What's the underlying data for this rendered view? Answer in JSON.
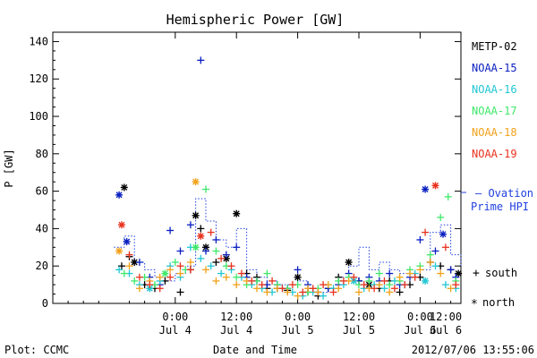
{
  "chart_data": {
    "type": "scatter",
    "title": "Hemispheric Power [GW]",
    "ylabel": "P [GW]",
    "xlabel": "Date and Time",
    "ylim": [
      0,
      145
    ],
    "xlim": [
      -24,
      56
    ],
    "x_units": "hours since 2012/07/04 00:00 UT",
    "yticks": [
      0,
      20,
      40,
      60,
      80,
      100,
      120,
      140
    ],
    "xticks": [
      {
        "x": 0,
        "time": "0:00",
        "date": "Jul 4"
      },
      {
        "x": 12,
        "time": "12:00",
        "date": "Jul 4"
      },
      {
        "x": 24,
        "time": "0:00",
        "date": "Jul 5"
      },
      {
        "x": 36,
        "time": "12:00",
        "date": "Jul 5"
      },
      {
        "x": 48,
        "time": "0:00",
        "date": "Jul 6"
      },
      {
        "x": 60,
        "time": "12:00",
        "date": "Jul 6"
      }
    ],
    "series": [
      {
        "name": "METP-02",
        "color": "#000000",
        "points": [
          [
            -10,
            62,
            "n"
          ],
          [
            -10.5,
            20,
            "s"
          ],
          [
            -9,
            25,
            "s"
          ],
          [
            -8,
            22,
            "n"
          ],
          [
            -6,
            10,
            "s"
          ],
          [
            -4,
            8,
            "s"
          ],
          [
            -2,
            12,
            "s"
          ],
          [
            1,
            6,
            "s"
          ],
          [
            3,
            18,
            "s"
          ],
          [
            4,
            47,
            "n"
          ],
          [
            5,
            40,
            "s"
          ],
          [
            6,
            30,
            "n"
          ],
          [
            8,
            22,
            "s"
          ],
          [
            10,
            24,
            "n"
          ],
          [
            12,
            48,
            "n"
          ],
          [
            14,
            16,
            "s"
          ],
          [
            16,
            14,
            "s"
          ],
          [
            18,
            8,
            "s"
          ],
          [
            20,
            8,
            "s"
          ],
          [
            22,
            7,
            "s"
          ],
          [
            24,
            14,
            "n"
          ],
          [
            26,
            6,
            "s"
          ],
          [
            28,
            4,
            "s"
          ],
          [
            30,
            8,
            "s"
          ],
          [
            32,
            14,
            "s"
          ],
          [
            34,
            22,
            "n"
          ],
          [
            36,
            12,
            "s"
          ],
          [
            38,
            10,
            "n"
          ],
          [
            40,
            8,
            "s"
          ],
          [
            42,
            12,
            "s"
          ],
          [
            44,
            6,
            "s"
          ],
          [
            46,
            10,
            "s"
          ],
          [
            48,
            14,
            "s"
          ],
          [
            50,
            22,
            "s"
          ],
          [
            52,
            20,
            "s"
          ],
          [
            54,
            18,
            "s"
          ],
          [
            55.5,
            16,
            "n"
          ]
        ]
      },
      {
        "name": "NOAA-15",
        "color": "#0a1fc0",
        "points": [
          [
            -11,
            58,
            "n"
          ],
          [
            -9.5,
            33,
            "n"
          ],
          [
            -7,
            22,
            "s"
          ],
          [
            -5,
            14,
            "s"
          ],
          [
            -3,
            10,
            "s"
          ],
          [
            -1,
            39,
            "s"
          ],
          [
            1,
            28,
            "s"
          ],
          [
            3,
            42,
            "s"
          ],
          [
            5,
            130,
            "s"
          ],
          [
            6,
            28,
            "s"
          ],
          [
            8,
            34,
            "s"
          ],
          [
            10,
            26,
            "s"
          ],
          [
            12,
            30,
            "s"
          ],
          [
            14,
            14,
            "s"
          ],
          [
            16,
            12,
            "s"
          ],
          [
            18,
            10,
            "s"
          ],
          [
            20,
            10,
            "s"
          ],
          [
            22,
            8,
            "s"
          ],
          [
            24,
            18,
            "s"
          ],
          [
            26,
            10,
            "s"
          ],
          [
            28,
            6,
            "s"
          ],
          [
            30,
            8,
            "s"
          ],
          [
            32,
            10,
            "s"
          ],
          [
            34,
            16,
            "s"
          ],
          [
            36,
            12,
            "s"
          ],
          [
            38,
            14,
            "s"
          ],
          [
            40,
            12,
            "s"
          ],
          [
            42,
            16,
            "s"
          ],
          [
            44,
            10,
            "s"
          ],
          [
            46,
            14,
            "s"
          ],
          [
            48,
            34,
            "s"
          ],
          [
            49,
            61,
            "n"
          ],
          [
            51,
            28,
            "s"
          ],
          [
            52.5,
            37,
            "n"
          ],
          [
            54,
            18,
            "s"
          ],
          [
            55,
            14,
            "s"
          ]
        ]
      },
      {
        "name": "NOAA-16",
        "color": "#21c7d4",
        "points": [
          [
            -11,
            18,
            "s"
          ],
          [
            -9,
            16,
            "s"
          ],
          [
            -7,
            10,
            "s"
          ],
          [
            -5,
            8,
            "n"
          ],
          [
            -3,
            12,
            "s"
          ],
          [
            -1,
            20,
            "s"
          ],
          [
            1,
            14,
            "s"
          ],
          [
            3,
            30,
            "s"
          ],
          [
            5,
            24,
            "s"
          ],
          [
            7,
            20,
            "s"
          ],
          [
            9,
            16,
            "s"
          ],
          [
            11,
            18,
            "s"
          ],
          [
            13,
            14,
            "s"
          ],
          [
            15,
            10,
            "s"
          ],
          [
            17,
            8,
            "s"
          ],
          [
            19,
            6,
            "s"
          ],
          [
            21,
            8,
            "s"
          ],
          [
            23,
            6,
            "s"
          ],
          [
            25,
            4,
            "s"
          ],
          [
            27,
            6,
            "s"
          ],
          [
            29,
            4,
            "s"
          ],
          [
            31,
            8,
            "s"
          ],
          [
            33,
            10,
            "s"
          ],
          [
            35,
            12,
            "n"
          ],
          [
            37,
            8,
            "s"
          ],
          [
            39,
            10,
            "s"
          ],
          [
            41,
            8,
            "s"
          ],
          [
            43,
            12,
            "s"
          ],
          [
            45,
            10,
            "s"
          ],
          [
            47,
            16,
            "s"
          ],
          [
            49,
            12,
            "n"
          ],
          [
            51,
            20,
            "s"
          ],
          [
            53,
            10,
            "s"
          ],
          [
            55,
            8,
            "s"
          ]
        ]
      },
      {
        "name": "NOAA-17",
        "color": "#3ee86a",
        "points": [
          [
            -10,
            16,
            "s"
          ],
          [
            -8,
            12,
            "s"
          ],
          [
            -6,
            14,
            "s"
          ],
          [
            -4,
            10,
            "s"
          ],
          [
            -2,
            16,
            "n"
          ],
          [
            0,
            22,
            "s"
          ],
          [
            2,
            18,
            "s"
          ],
          [
            4,
            30,
            "n"
          ],
          [
            6,
            61,
            "s"
          ],
          [
            8,
            28,
            "s"
          ],
          [
            10,
            20,
            "s"
          ],
          [
            12,
            14,
            "s"
          ],
          [
            14,
            10,
            "s"
          ],
          [
            16,
            12,
            "s"
          ],
          [
            18,
            16,
            "s"
          ],
          [
            20,
            10,
            "s"
          ],
          [
            22,
            8,
            "s"
          ],
          [
            24,
            10,
            "s"
          ],
          [
            26,
            6,
            "s"
          ],
          [
            28,
            8,
            "s"
          ],
          [
            30,
            10,
            "s"
          ],
          [
            32,
            12,
            "s"
          ],
          [
            34,
            14,
            "s"
          ],
          [
            36,
            10,
            "s"
          ],
          [
            38,
            12,
            "s"
          ],
          [
            40,
            16,
            "s"
          ],
          [
            42,
            10,
            "s"
          ],
          [
            44,
            12,
            "s"
          ],
          [
            46,
            18,
            "s"
          ],
          [
            48,
            20,
            "s"
          ],
          [
            50,
            26,
            "s"
          ],
          [
            52,
            46,
            "s"
          ],
          [
            53.5,
            57,
            "s"
          ],
          [
            55,
            12,
            "s"
          ]
        ]
      },
      {
        "name": "NOAA-18",
        "color": "#f2a11a",
        "points": [
          [
            -11,
            28,
            "n"
          ],
          [
            -9,
            20,
            "s"
          ],
          [
            -7,
            8,
            "s"
          ],
          [
            -5,
            12,
            "s"
          ],
          [
            -3,
            14,
            "s"
          ],
          [
            -1,
            18,
            "s"
          ],
          [
            1,
            16,
            "s"
          ],
          [
            3,
            22,
            "s"
          ],
          [
            4,
            65,
            "n"
          ],
          [
            6,
            18,
            "s"
          ],
          [
            8,
            12,
            "s"
          ],
          [
            10,
            14,
            "s"
          ],
          [
            12,
            10,
            "s"
          ],
          [
            14,
            12,
            "s"
          ],
          [
            16,
            8,
            "s"
          ],
          [
            18,
            6,
            "s"
          ],
          [
            20,
            8,
            "s"
          ],
          [
            22,
            6,
            "s"
          ],
          [
            24,
            4,
            "s"
          ],
          [
            26,
            8,
            "s"
          ],
          [
            28,
            6,
            "s"
          ],
          [
            30,
            10,
            "s"
          ],
          [
            32,
            8,
            "s"
          ],
          [
            34,
            12,
            "s"
          ],
          [
            36,
            6,
            "s"
          ],
          [
            38,
            8,
            "s"
          ],
          [
            40,
            10,
            "s"
          ],
          [
            42,
            6,
            "s"
          ],
          [
            44,
            14,
            "s"
          ],
          [
            46,
            16,
            "s"
          ],
          [
            48,
            18,
            "s"
          ],
          [
            50,
            22,
            "s"
          ],
          [
            52,
            16,
            "s"
          ],
          [
            54,
            8,
            "s"
          ]
        ]
      },
      {
        "name": "NOAA-19",
        "color": "#e8321e",
        "points": [
          [
            -10.5,
            42,
            "n"
          ],
          [
            -9,
            26,
            "s"
          ],
          [
            -7,
            14,
            "s"
          ],
          [
            -5,
            10,
            "s"
          ],
          [
            -3,
            8,
            "s"
          ],
          [
            -1,
            14,
            "s"
          ],
          [
            1,
            20,
            "s"
          ],
          [
            3,
            18,
            "s"
          ],
          [
            5,
            36,
            "n"
          ],
          [
            7,
            38,
            "s"
          ],
          [
            9,
            24,
            "s"
          ],
          [
            11,
            20,
            "s"
          ],
          [
            13,
            16,
            "s"
          ],
          [
            15,
            12,
            "s"
          ],
          [
            17,
            10,
            "s"
          ],
          [
            19,
            12,
            "s"
          ],
          [
            21,
            8,
            "s"
          ],
          [
            23,
            10,
            "s"
          ],
          [
            25,
            6,
            "s"
          ],
          [
            27,
            8,
            "s"
          ],
          [
            29,
            10,
            "s"
          ],
          [
            31,
            6,
            "s"
          ],
          [
            33,
            12,
            "s"
          ],
          [
            35,
            14,
            "s"
          ],
          [
            37,
            10,
            "s"
          ],
          [
            39,
            8,
            "s"
          ],
          [
            41,
            12,
            "s"
          ],
          [
            43,
            8,
            "s"
          ],
          [
            45,
            10,
            "s"
          ],
          [
            47,
            14,
            "s"
          ],
          [
            49,
            38,
            "s"
          ],
          [
            51,
            63,
            "n"
          ],
          [
            53,
            30,
            "s"
          ],
          [
            55,
            10,
            "s"
          ]
        ]
      }
    ],
    "ovation": {
      "name": "Ovation Prime HPI",
      "color": "#2040e0",
      "x": [
        -12,
        -10,
        -8,
        -6,
        -4,
        -2,
        0,
        2,
        4,
        6,
        8,
        10,
        12,
        14,
        16,
        18,
        20,
        22,
        24,
        26,
        28,
        30,
        32,
        34,
        36,
        38,
        40,
        42,
        44,
        46,
        48,
        50,
        52,
        54,
        56
      ],
      "y": [
        30,
        36,
        22,
        18,
        14,
        12,
        16,
        20,
        56,
        44,
        34,
        30,
        40,
        18,
        14,
        12,
        10,
        10,
        12,
        8,
        6,
        8,
        14,
        20,
        30,
        18,
        22,
        18,
        16,
        14,
        18,
        38,
        42,
        26,
        20
      ]
    },
    "legend_placement": "right",
    "markers": {
      "south_symbol": "+",
      "south_label": "south",
      "north_symbol": "*",
      "north_label": "north"
    },
    "grid": false
  },
  "footer": {
    "left": "Plot: CCMC",
    "right": "2012/07/06 13:55:06"
  },
  "legend_labels": {
    "ovation_line1": "— Ovation",
    "ovation_line2": "Prime HPI"
  }
}
